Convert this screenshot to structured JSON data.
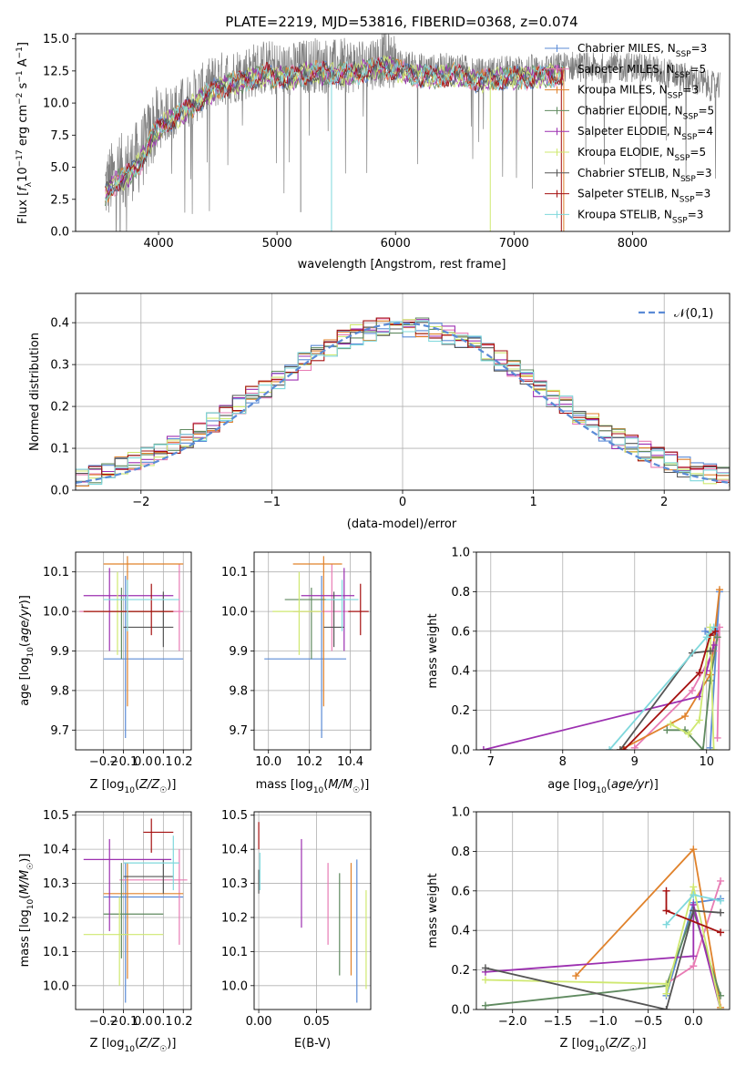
{
  "figure_title": "PLATE=2219, MJD=53816, FIBERID=0368, z=0.074",
  "series": [
    {
      "name": "Chabrier MILES",
      "nssp": 3,
      "color": "#5b8bd6"
    },
    {
      "name": "Salpeter MILES",
      "nssp": 5,
      "color": "#e87bb4"
    },
    {
      "name": "Kroupa MILES",
      "nssp": 3,
      "color": "#e0822b"
    },
    {
      "name": "Chabrier ELODIE",
      "nssp": 5,
      "color": "#5f8a5f"
    },
    {
      "name": "Salpeter ELODIE",
      "nssp": 4,
      "color": "#9c2fb0"
    },
    {
      "name": "Kroupa ELODIE",
      "nssp": 5,
      "color": "#cfe870"
    },
    {
      "name": "Chabrier STELIB",
      "nssp": 3,
      "color": "#555555"
    },
    {
      "name": "Salpeter STELIB",
      "nssp": 3,
      "color": "#a51010"
    },
    {
      "name": "Kroupa STELIB",
      "nssp": 3,
      "color": "#7fd8dc"
    }
  ],
  "chart_data": [
    {
      "id": "spectrum",
      "type": "line",
      "xlabel": "wavelength [Angstrom, rest frame]",
      "ylabel": "Flux [f_λ 10^-17 erg cm^-2 s^-1 A^-1]",
      "xlim": [
        3300,
        8820
      ],
      "ylim": [
        0,
        15.4
      ],
      "xticks": [
        4000,
        5000,
        6000,
        7000,
        8000
      ],
      "yticks": [
        0.0,
        2.5,
        5.0,
        7.5,
        10.0,
        12.5,
        15.0
      ],
      "grid": false,
      "legend": "top-right",
      "data_x_range": [
        3550,
        8740
      ],
      "observed_envelope": {
        "x": [
          3550,
          3650,
          3750,
          3850,
          3950,
          4050,
          4150,
          4300,
          4500,
          4700,
          4900,
          5100,
          5300,
          5500,
          5700,
          5900,
          6100,
          6300,
          6500,
          6700,
          6900,
          7100,
          7300,
          7500,
          7700,
          7900,
          8100,
          8300,
          8500,
          8700
        ],
        "y": [
          3.5,
          4.5,
          5.0,
          6.0,
          8.0,
          9.0,
          9.5,
          10.5,
          11.8,
          12.3,
          12.8,
          12.5,
          13.0,
          12.8,
          13.0,
          13.4,
          12.9,
          12.6,
          12.8,
          12.3,
          12.5,
          12.6,
          12.7,
          12.9,
          12.7,
          12.8,
          12.8,
          12.3,
          11.8,
          11.2
        ]
      }
    },
    {
      "id": "residuals",
      "type": "step-histogram",
      "xlabel": "(data-model)/error",
      "ylabel": "Normed distribution",
      "xlim": [
        -2.5,
        2.5
      ],
      "ylim": [
        0,
        0.47
      ],
      "xticks": [
        -2,
        -1,
        0,
        1,
        2
      ],
      "yticks": [
        0.0,
        0.1,
        0.2,
        0.3,
        0.4
      ],
      "grid": true,
      "legend": "top-right",
      "reference_curve": {
        "name": "𝒩(0,1)",
        "mean": 0,
        "sigma": 1
      },
      "bin_width": 0.1
    },
    {
      "id": "age-vs-metallicity",
      "type": "errorbar",
      "xlabel": "Z [log10(Z/Z☉)]",
      "ylabel": "age [log10(age/yr)]",
      "xlim": [
        -0.34,
        0.24
      ],
      "ylim": [
        9.65,
        10.15
      ],
      "xticks": [
        -0.2,
        -0.1,
        0.0,
        0.1,
        0.2
      ],
      "yticks": [
        9.7,
        9.8,
        9.9,
        10.0,
        10.1
      ],
      "grid": true,
      "points": [
        {
          "x": -0.09,
          "y": 9.88,
          "xlo": -0.2,
          "xhi": 0.2,
          "ylo": 9.68,
          "yhi": 10.09
        },
        {
          "x": 0.18,
          "y": 10.0,
          "xlo": -0.32,
          "xhi": 0.2,
          "ylo": 9.9,
          "yhi": 10.12
        },
        {
          "x": -0.08,
          "y": 10.12,
          "xlo": -0.2,
          "xhi": 0.2,
          "ylo": 9.76,
          "yhi": 10.14
        },
        {
          "x": -0.11,
          "y": 10.0,
          "xlo": -0.11,
          "xhi": 0.1,
          "ylo": 9.88,
          "yhi": 10.06
        },
        {
          "x": -0.17,
          "y": 10.04,
          "xlo": -0.3,
          "xhi": 0.15,
          "ylo": 9.9,
          "yhi": 10.11
        },
        {
          "x": -0.13,
          "y": 10.0,
          "xlo": -0.3,
          "xhi": 0.14,
          "ylo": 9.89,
          "yhi": 10.1
        },
        {
          "x": 0.1,
          "y": 9.96,
          "xlo": -0.1,
          "xhi": 0.15,
          "ylo": 9.91,
          "yhi": 10.05
        },
        {
          "x": 0.04,
          "y": 10.0,
          "xlo": -0.3,
          "xhi": 0.15,
          "ylo": 9.94,
          "yhi": 10.07
        },
        {
          "x": -0.08,
          "y": 10.03,
          "xlo": -0.2,
          "xhi": 0.18,
          "ylo": 9.95,
          "yhi": 10.08
        }
      ]
    },
    {
      "id": "age-vs-mass",
      "type": "errorbar",
      "xlabel": "mass [log10(M/M☉)]",
      "ylabel": "",
      "xlim": [
        9.93,
        10.5
      ],
      "ylim": [
        9.65,
        10.15
      ],
      "xticks": [
        10.0,
        10.2,
        10.4
      ],
      "yticks": [
        9.7,
        9.8,
        9.9,
        10.0,
        10.1
      ],
      "grid": true,
      "points": [
        {
          "x": 10.26,
          "y": 9.88,
          "xlo": 9.98,
          "xhi": 10.38,
          "ylo": 9.68,
          "yhi": 10.09
        },
        {
          "x": 10.31,
          "y": 10.0,
          "xlo": 10.12,
          "xhi": 10.4,
          "ylo": 9.9,
          "yhi": 10.12
        },
        {
          "x": 10.27,
          "y": 10.12,
          "xlo": 10.12,
          "xhi": 10.36,
          "ylo": 9.76,
          "yhi": 10.14
        },
        {
          "x": 10.21,
          "y": 10.03,
          "xlo": 10.08,
          "xhi": 10.36,
          "ylo": 9.88,
          "yhi": 10.06
        },
        {
          "x": 10.37,
          "y": 10.04,
          "xlo": 10.16,
          "xhi": 10.42,
          "ylo": 9.9,
          "yhi": 10.11
        },
        {
          "x": 10.15,
          "y": 10.0,
          "xlo": 10.02,
          "xhi": 10.26,
          "ylo": 9.89,
          "yhi": 10.1
        },
        {
          "x": 10.32,
          "y": 9.96,
          "xlo": 10.27,
          "xhi": 10.37,
          "ylo": 9.91,
          "yhi": 10.05
        },
        {
          "x": 10.45,
          "y": 10.0,
          "xlo": 10.39,
          "xhi": 10.49,
          "ylo": 9.94,
          "yhi": 10.07
        },
        {
          "x": 10.36,
          "y": 10.03,
          "xlo": 10.28,
          "xhi": 10.44,
          "ylo": 9.95,
          "yhi": 10.08
        }
      ]
    },
    {
      "id": "mass-weight-vs-age",
      "type": "line",
      "xlabel": "age [log10(age/yr)]",
      "ylabel": "mass weight",
      "xlim": [
        6.8,
        10.32
      ],
      "ylim": [
        0,
        1
      ],
      "xticks": [
        7,
        8,
        9,
        10
      ],
      "yticks": [
        0.0,
        0.2,
        0.4,
        0.6,
        0.8,
        1.0
      ],
      "grid": true,
      "series": [
        {
          "x": [
            10.05,
            10.18,
            10.12,
            9.98
          ],
          "y": [
            0.01,
            0.8,
            0.58,
            0.6
          ]
        },
        {
          "x": [
            9.0,
            9.8,
            10.1,
            10.18,
            10.15
          ],
          "y": [
            0.01,
            0.3,
            0.5,
            0.62,
            0.06
          ]
        },
        {
          "x": [
            8.8,
            9.7,
            10.05,
            10.18
          ],
          "y": [
            0.0,
            0.17,
            0.38,
            0.81
          ]
        },
        {
          "x": [
            9.45,
            9.7,
            9.95,
            10.05,
            10.15
          ],
          "y": [
            0.1,
            0.1,
            0.0,
            0.35,
            0.57
          ]
        },
        {
          "x": [
            6.9,
            9.9,
            10.0,
            10.1
          ],
          "y": [
            0.0,
            0.27,
            0.4,
            0.53
          ]
        },
        {
          "x": [
            9.5,
            9.75,
            9.9,
            10.05,
            10.1
          ],
          "y": [
            0.13,
            0.08,
            0.15,
            0.62,
            0.0
          ]
        },
        {
          "x": [
            8.8,
            9.8,
            10.05
          ],
          "y": [
            0.0,
            0.49,
            0.5
          ]
        },
        {
          "x": [
            8.85,
            9.9,
            10.05,
            10.12
          ],
          "y": [
            0.0,
            0.39,
            0.58,
            0.6
          ]
        },
        {
          "x": [
            8.65,
            10.0,
            10.1
          ],
          "y": [
            0.0,
            0.57,
            0.62
          ]
        }
      ]
    },
    {
      "id": "mass-vs-metallicity",
      "type": "errorbar",
      "xlabel": "Z [log10(Z/Z☉)]",
      "ylabel": "mass [log10(M/M☉)]",
      "xlim": [
        -0.34,
        0.24
      ],
      "ylim": [
        9.93,
        10.51
      ],
      "xticks": [
        -0.2,
        -0.1,
        0.0,
        0.1,
        0.2
      ],
      "yticks": [
        10.0,
        10.1,
        10.2,
        10.3,
        10.4,
        10.5
      ],
      "grid": true,
      "points": [
        {
          "x": -0.09,
          "y": 10.26,
          "xlo": -0.2,
          "xhi": 0.2,
          "ylo": 9.95,
          "yhi": 10.36
        },
        {
          "x": 0.18,
          "y": 10.31,
          "xlo": -0.12,
          "xhi": 0.22,
          "ylo": 10.12,
          "yhi": 10.4
        },
        {
          "x": -0.08,
          "y": 10.27,
          "xlo": -0.2,
          "xhi": 0.2,
          "ylo": 10.02,
          "yhi": 10.36
        },
        {
          "x": -0.11,
          "y": 10.21,
          "xlo": -0.2,
          "xhi": 0.1,
          "ylo": 10.08,
          "yhi": 10.36
        },
        {
          "x": -0.17,
          "y": 10.37,
          "xlo": -0.3,
          "xhi": 0.14,
          "ylo": 10.16,
          "yhi": 10.43
        },
        {
          "x": -0.12,
          "y": 10.15,
          "xlo": -0.3,
          "xhi": 0.1,
          "ylo": 10.0,
          "yhi": 10.26
        },
        {
          "x": 0.1,
          "y": 10.32,
          "xlo": -0.1,
          "xhi": 0.15,
          "ylo": 10.27,
          "yhi": 10.37
        },
        {
          "x": 0.04,
          "y": 10.45,
          "xlo": 0.0,
          "xhi": 0.15,
          "ylo": 10.39,
          "yhi": 10.49
        },
        {
          "x": 0.15,
          "y": 10.36,
          "xlo": -0.1,
          "xhi": 0.18,
          "ylo": 10.28,
          "yhi": 10.44
        }
      ]
    },
    {
      "id": "mass-vs-ebv",
      "type": "errorbar",
      "xlabel": "E(B-V)",
      "ylabel": "",
      "xlim": [
        -0.004,
        0.097
      ],
      "ylim": [
        9.93,
        10.51
      ],
      "xticks": [
        0.0,
        0.05
      ],
      "tick_labels": [
        "0.00",
        "0.05"
      ],
      "yticks": [
        10.0,
        10.1,
        10.2,
        10.3,
        10.4,
        10.5
      ],
      "grid": true,
      "points": [
        {
          "x": 0.085,
          "y": 10.26,
          "ylo": 9.95,
          "yhi": 10.37
        },
        {
          "x": 0.06,
          "y": 10.24,
          "ylo": 10.12,
          "yhi": 10.36
        },
        {
          "x": 0.08,
          "y": 10.19,
          "ylo": 10.03,
          "yhi": 10.36
        },
        {
          "x": 0.07,
          "y": 10.2,
          "ylo": 10.03,
          "yhi": 10.33
        },
        {
          "x": 0.037,
          "y": 10.3,
          "ylo": 10.17,
          "yhi": 10.43
        },
        {
          "x": 0.093,
          "y": 10.14,
          "ylo": 9.99,
          "yhi": 10.28
        },
        {
          "x": 0.0,
          "y": 10.3,
          "ylo": 10.27,
          "yhi": 10.34
        },
        {
          "x": 0.0,
          "y": 10.45,
          "ylo": 10.4,
          "yhi": 10.48
        },
        {
          "x": 0.001,
          "y": 10.33,
          "ylo": 10.28,
          "yhi": 10.39
        }
      ]
    },
    {
      "id": "mass-weight-vs-metallicity",
      "type": "line",
      "xlabel": "Z [log10(Z/Z☉)]",
      "ylabel": "mass weight",
      "xlim": [
        -2.4,
        0.4
      ],
      "ylim": [
        0,
        1
      ],
      "xticks": [
        -2.0,
        -1.5,
        -1.0,
        -0.5,
        0.0
      ],
      "yticks": [
        0.0,
        0.2,
        0.4,
        0.6,
        0.8,
        1.0
      ],
      "grid": true,
      "series": [
        {
          "x": [
            -0.3,
            0.0,
            0.3
          ],
          "y": [
            0.07,
            0.54,
            0.56
          ]
        },
        {
          "x": [
            -0.3,
            0.0,
            0.3
          ],
          "y": [
            0.13,
            0.22,
            0.65
          ]
        },
        {
          "x": [
            -1.3,
            0.0,
            0.3
          ],
          "y": [
            0.17,
            0.81,
            0.01
          ]
        },
        {
          "x": [
            -2.3,
            -0.3,
            0.0,
            0.3
          ],
          "y": [
            0.02,
            0.12,
            0.5,
            0.07
          ]
        },
        {
          "x": [
            -2.3,
            0.0,
            0.0,
            0.3
          ],
          "y": [
            0.19,
            0.27,
            0.53,
            0.0
          ]
        },
        {
          "x": [
            -2.3,
            -0.3,
            -0.3,
            0.0,
            0.3
          ],
          "y": [
            0.15,
            0.13,
            0.08,
            0.62,
            0.0
          ]
        },
        {
          "x": [
            -2.3,
            -0.3,
            0.0,
            0.3
          ],
          "y": [
            0.21,
            0.0,
            0.5,
            0.49
          ]
        },
        {
          "x": [
            -0.3,
            -0.3,
            0.3
          ],
          "y": [
            0.6,
            0.5,
            0.39
          ]
        },
        {
          "x": [
            -0.3,
            0.0,
            0.3
          ],
          "y": [
            0.43,
            0.58,
            0.55
          ]
        }
      ]
    }
  ]
}
